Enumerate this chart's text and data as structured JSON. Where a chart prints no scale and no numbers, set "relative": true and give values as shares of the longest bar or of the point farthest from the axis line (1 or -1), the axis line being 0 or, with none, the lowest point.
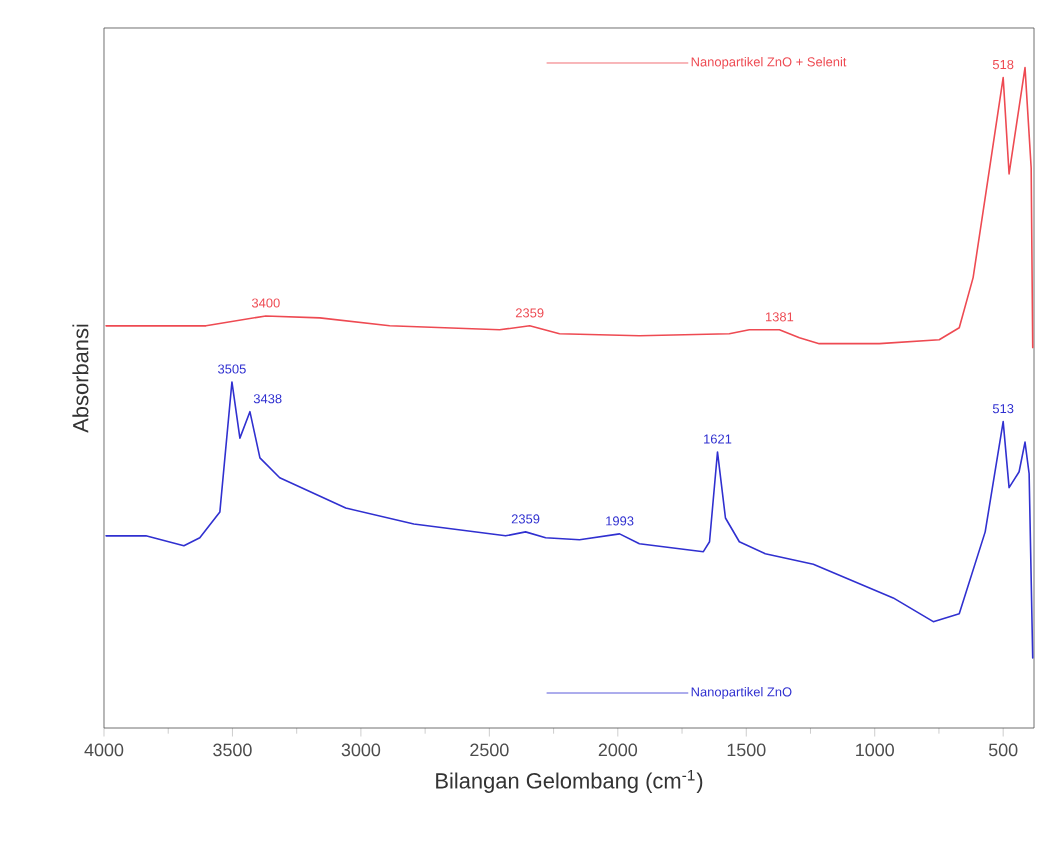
{
  "chart_data": {
    "type": "line",
    "xlabel": "Bilangan Gelombang (cm$^{-1}$)",
    "ylabel": "Absorbansi",
    "relative": true,
    "xlim": [
      4000,
      380
    ],
    "xticks": [
      4000,
      3500,
      3000,
      2500,
      2000,
      1500,
      1000,
      500
    ],
    "series": [
      {
        "name": "Nanopartikel ZnO + Selenit",
        "color": "#ee4a52",
        "x": [
          3992,
          3603,
          3370,
          3160,
          2888,
          2460,
          2343,
          2227,
          1916,
          1566,
          1488,
          1371,
          1293,
          1216,
          982,
          749,
          671,
          617,
          570,
          500,
          477,
          415,
          391,
          385
        ],
        "values": [
          0.609,
          0.609,
          0.624,
          0.621,
          0.609,
          0.603,
          0.609,
          0.597,
          0.594,
          0.597,
          0.603,
          0.603,
          0.591,
          0.582,
          0.582,
          0.588,
          0.606,
          0.682,
          0.803,
          0.985,
          0.839,
          1.0,
          0.848,
          0.576
        ]
      },
      {
        "name": "Nanopartikel ZnO",
        "color": "#3030d0",
        "x": [
          3992,
          3837,
          3689,
          3627,
          3549,
          3502,
          3471,
          3432,
          3393,
          3316,
          3059,
          2794,
          2437,
          2359,
          2281,
          2149,
          1993,
          1916,
          1667,
          1643,
          1612,
          1581,
          1527,
          1426,
          1239,
          928,
          772,
          671,
          570,
          500,
          477,
          438,
          415,
          399,
          385
        ],
        "values": [
          0.291,
          0.291,
          0.276,
          0.288,
          0.327,
          0.524,
          0.439,
          0.479,
          0.409,
          0.379,
          0.333,
          0.309,
          0.291,
          0.297,
          0.288,
          0.285,
          0.294,
          0.279,
          0.267,
          0.282,
          0.418,
          0.318,
          0.282,
          0.264,
          0.248,
          0.197,
          0.161,
          0.173,
          0.297,
          0.464,
          0.364,
          0.388,
          0.433,
          0.385,
          0.106
        ]
      }
    ],
    "annotations": [
      {
        "text": "3400",
        "x": 3370,
        "y": 0.624
      },
      {
        "text": "2359",
        "x": 2343,
        "y": 0.609
      },
      {
        "text": "1381",
        "x": 1371,
        "y": 0.603
      },
      {
        "text": "518",
        "x": 500,
        "y": 0.985
      },
      {
        "text": "3505",
        "x": 3502,
        "y": 0.524
      },
      {
        "text": "3438",
        "x": 3432,
        "y": 0.479
      },
      {
        "text": "2359",
        "x": 2359,
        "y": 0.297
      },
      {
        "text": "1993",
        "x": 1993,
        "y": 0.294
      },
      {
        "text": "1621",
        "x": 1612,
        "y": 0.418
      },
      {
        "text": "513",
        "x": 500,
        "y": 0.464
      }
    ]
  }
}
